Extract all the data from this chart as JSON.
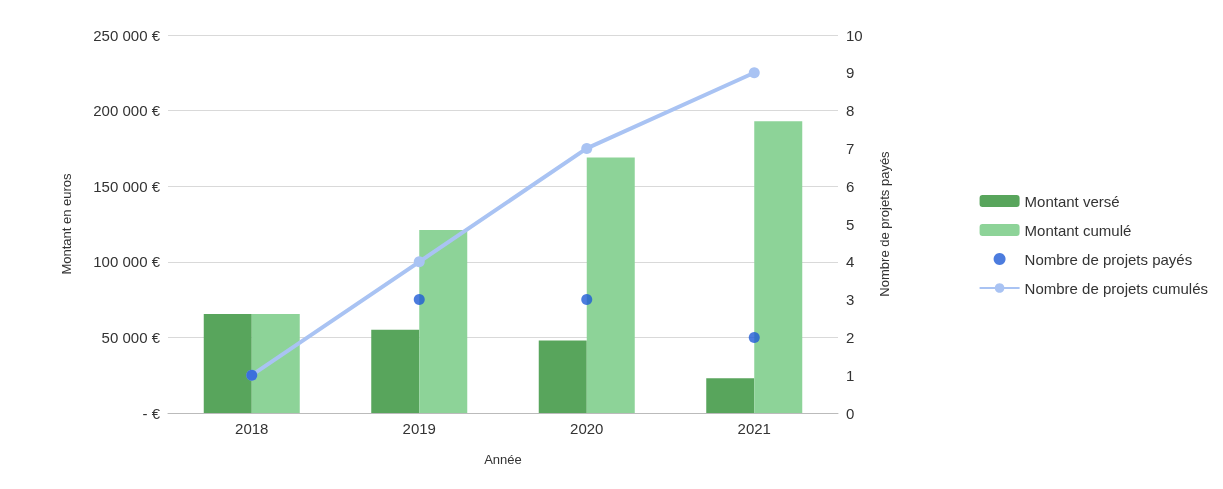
{
  "chart_data": {
    "type": "bar",
    "xlabel": "Année",
    "ylabel": "Montant en euros",
    "y2label": "Nombre de projets payés",
    "categories": [
      "2018",
      "2019",
      "2020",
      "2021"
    ],
    "series": [
      {
        "name": "Montant versé",
        "color": "#58a55c",
        "values": [
          65500,
          55000,
          48000,
          23000
        ]
      },
      {
        "name": "Montant cumulé",
        "color": "#8dd398",
        "values": [
          65500,
          121000,
          169000,
          193000
        ]
      },
      {
        "name": "Nombre de projets payés",
        "type": "scatter",
        "axis": "y2",
        "color": "#1f5bd6",
        "values": [
          1,
          3,
          3,
          2
        ]
      },
      {
        "name": "Nombre de projets cumulés",
        "type": "line",
        "axis": "y2",
        "color": "#a9c3f3",
        "marker": "circle",
        "values": [
          1,
          4,
          7,
          9
        ]
      }
    ],
    "ylim": [
      0,
      250000
    ],
    "yticks": [
      {
        "value": 0,
        "label": "- €"
      },
      {
        "value": 50000,
        "label": "50 000 €"
      },
      {
        "value": 100000,
        "label": "100 000 €"
      },
      {
        "value": 150000,
        "label": "150 000 €"
      },
      {
        "value": 200000,
        "label": "200 000 €"
      },
      {
        "value": 250000,
        "label": "250 000 €"
      }
    ],
    "y2lim": [
      0,
      10
    ],
    "y2ticks": [
      0,
      1,
      2,
      3,
      4,
      5,
      6,
      7,
      8,
      9,
      10
    ],
    "grid": "y",
    "legend": "right"
  }
}
